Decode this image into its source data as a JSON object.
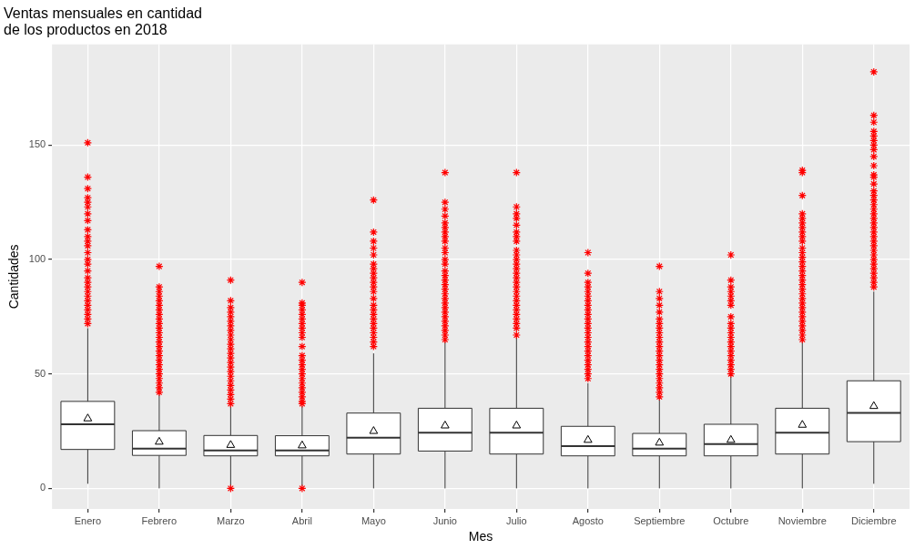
{
  "chart_data": {
    "type": "box",
    "title": "Ventas mensuales en cantidad\nde los productos en 2018",
    "xlabel": "Mes",
    "ylabel": "Cantidades",
    "categories": [
      "Enero",
      "Febrero",
      "Marzo",
      "Abril",
      "Mayo",
      "Junio",
      "Julio",
      "Agosto",
      "Septiembre",
      "Octubre",
      "Noviembre",
      "Diciembre"
    ],
    "ylim": [
      -9,
      194
    ],
    "yticks": [
      0,
      50,
      100,
      150
    ],
    "grid": true,
    "legend": false,
    "marker": "star",
    "boxes": [
      {
        "low": 2,
        "q1": 17,
        "median": 28,
        "q3": 38,
        "high": 70,
        "mean": 30.5,
        "outliers": [
          72,
          74,
          76,
          78,
          80,
          82,
          84,
          86,
          88,
          90,
          92,
          95,
          98,
          100,
          103,
          106,
          108,
          110,
          113,
          117,
          120,
          123,
          125,
          127,
          131,
          136,
          151
        ]
      },
      {
        "low": 0,
        "q1": 14.4,
        "median": 17.4,
        "q3": 25.2,
        "high": 41,
        "mean": 20.3,
        "outliers": [
          42,
          44,
          46,
          48,
          50,
          52,
          54,
          56,
          58,
          60,
          62,
          64,
          66,
          68,
          70,
          72,
          74,
          76,
          78,
          80,
          82,
          84,
          86,
          88,
          97
        ]
      },
      {
        "low": 1,
        "q1": 14.2,
        "median": 16.6,
        "q3": 23.1,
        "high": 36,
        "mean": 18.9,
        "outliers": [
          0,
          37,
          39,
          41,
          43,
          45,
          47,
          49,
          51,
          53,
          55,
          57,
          59,
          61,
          63,
          65,
          67,
          69,
          71,
          73,
          75,
          77,
          79,
          82,
          91
        ]
      },
      {
        "low": 1,
        "q1": 14.2,
        "median": 16.6,
        "q3": 23,
        "high": 36,
        "mean": 18.7,
        "outliers": [
          0,
          37,
          38,
          40,
          42,
          44,
          46,
          48,
          50,
          52,
          54,
          56,
          58,
          62,
          66,
          68,
          70,
          72,
          74,
          76,
          78,
          80,
          81,
          90
        ]
      },
      {
        "low": 0,
        "q1": 15,
        "median": 22.1,
        "q3": 32.9,
        "high": 59,
        "mean": 25,
        "outliers": [
          62,
          64,
          66,
          68,
          70,
          72,
          74,
          76,
          78,
          80,
          83,
          86,
          88,
          90,
          92,
          94,
          96,
          98,
          102,
          105,
          108,
          112,
          126
        ]
      },
      {
        "low": 0,
        "q1": 16.3,
        "median": 24.3,
        "q3": 35,
        "high": 64,
        "mean": 27.4,
        "outliers": [
          65,
          67,
          69,
          71,
          73,
          75,
          77,
          79,
          81,
          83,
          85,
          87,
          89,
          91,
          93,
          95,
          98,
          100,
          103,
          105,
          108,
          110,
          112,
          114,
          116,
          119,
          122,
          125,
          138
        ]
      },
      {
        "low": 0,
        "q1": 15,
        "median": 24.3,
        "q3": 35,
        "high": 66,
        "mean": 27.4,
        "outliers": [
          67,
          70,
          72,
          74,
          76,
          78,
          80,
          82,
          84,
          86,
          88,
          90,
          92,
          94,
          96,
          98,
          100,
          102,
          104,
          108,
          110,
          112,
          115,
          118,
          120,
          123,
          138
        ]
      },
      {
        "low": 0,
        "q1": 14.2,
        "median": 18.5,
        "q3": 27.1,
        "high": 46,
        "mean": 21.1,
        "outliers": [
          48,
          50,
          52,
          54,
          56,
          58,
          60,
          62,
          64,
          66,
          68,
          70,
          72,
          74,
          76,
          78,
          80,
          82,
          84,
          86,
          88,
          90,
          94,
          103
        ]
      },
      {
        "low": 0,
        "q1": 14.2,
        "median": 17.4,
        "q3": 24,
        "high": 39,
        "mean": 19.9,
        "outliers": [
          40,
          42,
          44,
          46,
          48,
          50,
          52,
          54,
          56,
          58,
          60,
          62,
          64,
          66,
          68,
          70,
          72,
          74,
          77,
          80,
          83,
          86,
          97
        ]
      },
      {
        "low": 0,
        "q1": 14.2,
        "median": 19.3,
        "q3": 28,
        "high": 49,
        "mean": 21.1,
        "outliers": [
          50,
          52,
          54,
          56,
          58,
          60,
          62,
          64,
          66,
          68,
          70,
          72,
          75,
          80,
          82,
          84,
          86,
          88,
          91,
          102
        ]
      },
      {
        "low": 0,
        "q1": 15,
        "median": 24.3,
        "q3": 35,
        "high": 64,
        "mean": 27.7,
        "outliers": [
          65,
          67,
          69,
          71,
          73,
          75,
          77,
          79,
          81,
          83,
          85,
          87,
          89,
          91,
          93,
          95,
          97,
          99,
          101,
          103,
          105,
          108,
          110,
          112,
          114,
          116,
          118,
          120,
          128,
          138,
          139
        ]
      },
      {
        "low": 2,
        "q1": 20.4,
        "median": 33,
        "q3": 47,
        "high": 86,
        "mean": 35.9,
        "outliers": [
          88,
          90,
          92,
          94,
          96,
          98,
          100,
          102,
          104,
          106,
          108,
          110,
          112,
          114,
          116,
          118,
          120,
          122,
          124,
          126,
          128,
          130,
          133,
          136,
          137,
          141,
          145,
          148,
          150,
          152,
          154,
          156,
          160,
          163,
          182
        ]
      }
    ]
  }
}
